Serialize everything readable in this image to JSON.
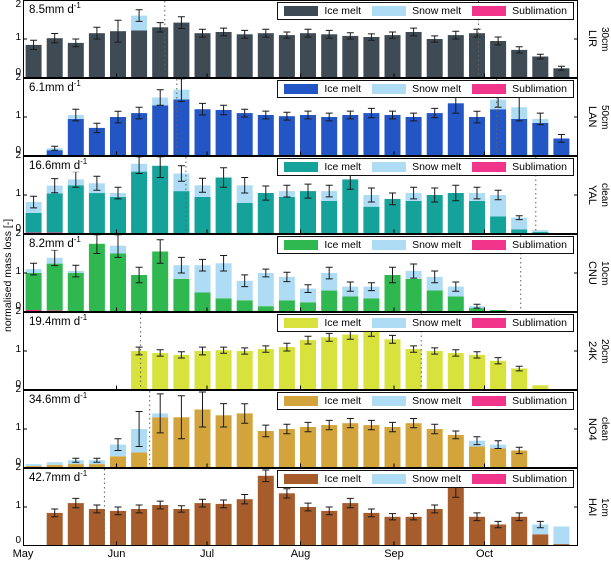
{
  "chart_data": {
    "type": "bar",
    "stacked": true,
    "stack_order": [
      "sublimation",
      "ice_melt",
      "snow_melt"
    ],
    "ylabel": "normalised mass loss [-]",
    "ylim": [
      0,
      2
    ],
    "yticks": [
      2,
      1,
      0
    ],
    "legend": {
      "labels": [
        "Ice melt",
        "Snow melt",
        "Sublimation"
      ],
      "position": "top-right-inside"
    },
    "colors": {
      "snow_melt": "#aedcf5",
      "sublimation": "#f0358b",
      "error": "#1a1a1a",
      "dotted_line": "#606060",
      "frame": "#000000"
    },
    "x_axis": {
      "unit": "day_of_season",
      "total_days": 184,
      "first_bar_center_day": 3.5,
      "bar_spacing_days": 7,
      "months": [
        {
          "label": "May",
          "day": 0
        },
        {
          "label": "Jun",
          "day": 31
        },
        {
          "label": "Jul",
          "day": 61
        },
        {
          "label": "Aug",
          "day": 92
        },
        {
          "label": "Sep",
          "day": 123
        },
        {
          "label": "Oct",
          "day": 153
        }
      ]
    },
    "panels": [
      {
        "site": "LIR",
        "depth": "30cm",
        "rate_label": "8.5mm d",
        "rate_sup": "-1",
        "ice_color": "#3f4b54",
        "ice": [
          0.85,
          1.02,
          0.9,
          1.15,
          1.2,
          1.22,
          1.3,
          1.42,
          1.15,
          1.18,
          1.12,
          1.15,
          1.1,
          1.15,
          1.12,
          1.08,
          1.05,
          1.1,
          1.18,
          1.0,
          1.1,
          1.15,
          0.95,
          0.72,
          0.55,
          0.25
        ],
        "snow": [
          0,
          0,
          0,
          0,
          0,
          0.38,
          0,
          0,
          0,
          0,
          0,
          0,
          0,
          0,
          0,
          0,
          0,
          0,
          0,
          0,
          0,
          0,
          0,
          0,
          0,
          0
        ],
        "sub": [
          0,
          0,
          0,
          0,
          0,
          0,
          0,
          0,
          0,
          0,
          0,
          0,
          0,
          0,
          0,
          0,
          0,
          0,
          0,
          0,
          0,
          0,
          0,
          0,
          0,
          0
        ],
        "err": [
          0.12,
          0.12,
          0.1,
          0.15,
          0.28,
          0.15,
          0.12,
          0.15,
          0.1,
          0.1,
          0.1,
          0.1,
          0.08,
          0.1,
          0.1,
          0.08,
          0.08,
          0.08,
          0.1,
          0.08,
          0.1,
          0.1,
          0.1,
          0.08,
          0.06,
          0.05
        ],
        "dotted_days": [
          47,
          151
        ]
      },
      {
        "site": "LAN",
        "depth": "50cm",
        "rate_label": "6.1mm d",
        "rate_sup": "-1",
        "ice_color": "#2356c4",
        "ice": [
          0,
          0.15,
          0.95,
          0.72,
          1.0,
          1.1,
          1.3,
          1.45,
          1.2,
          1.18,
          1.1,
          1.05,
          1.02,
          1.05,
          1.0,
          1.05,
          1.1,
          1.05,
          1.0,
          1.1,
          1.35,
          1.0,
          1.2,
          0.95,
          0.85,
          0.45
        ],
        "snow": [
          0,
          0.05,
          0.1,
          0,
          0,
          0,
          0.2,
          0.25,
          0,
          0,
          0,
          0,
          0,
          0,
          0,
          0,
          0,
          0,
          0,
          0,
          0,
          0,
          0.25,
          0.3,
          0.1,
          0
        ],
        "sub": [
          0,
          0,
          0,
          0,
          0,
          0,
          0,
          0,
          0,
          0,
          0,
          0,
          0,
          0,
          0,
          0,
          0,
          0,
          0,
          0,
          0,
          0,
          0,
          0,
          0,
          0
        ],
        "err": [
          0,
          0.05,
          0.15,
          0.12,
          0.15,
          0.15,
          0.2,
          0.3,
          0.15,
          0.12,
          0.1,
          0.1,
          0.1,
          0.1,
          0.1,
          0.1,
          0.12,
          0.1,
          0.1,
          0.12,
          0.25,
          0.15,
          0.2,
          0.35,
          0.15,
          0.1
        ],
        "dotted_days": [
          51,
          157
        ]
      },
      {
        "site": "YAL",
        "depth": "clean",
        "rate_label": "16.6mm d",
        "rate_sup": "-1",
        "ice_color": "#14a29a",
        "ice": [
          0.5,
          1.0,
          1.25,
          1.05,
          0.95,
          1.6,
          1.75,
          1.1,
          0.95,
          1.45,
          0.8,
          1.05,
          0.95,
          1.1,
          0.85,
          1.4,
          0.7,
          0.9,
          0.85,
          1.0,
          1.05,
          0.85,
          0.45,
          0.12,
          0.05,
          0
        ],
        "snow": [
          0.28,
          0.2,
          0.15,
          0.25,
          0.1,
          0.2,
          0,
          0.45,
          0.3,
          0,
          0.45,
          0,
          0.15,
          0,
          0.25,
          0,
          0.3,
          0,
          0.2,
          0,
          0,
          0.2,
          0.55,
          0.3,
          0.05,
          0
        ],
        "sub": [
          0.04,
          0.04,
          0,
          0,
          0,
          0,
          0,
          0,
          0,
          0,
          0,
          0,
          0,
          0,
          0,
          0,
          0,
          0,
          0,
          0,
          0,
          0,
          0,
          0,
          0,
          0
        ],
        "err": [
          0.15,
          0.18,
          0.2,
          0.18,
          0.15,
          0.25,
          0.3,
          0.2,
          0.18,
          0.25,
          0.2,
          0.18,
          0.15,
          0.18,
          0.15,
          0.25,
          0.18,
          0.15,
          0.15,
          0.18,
          0.2,
          0.15,
          0.12,
          0.05,
          0,
          0
        ],
        "dotted_days": [
          54,
          170
        ]
      },
      {
        "site": "CNU",
        "depth": "10cm",
        "rate_label": "8.2mm d",
        "rate_sup": "-1",
        "ice_color": "#2eb84f",
        "ice": [
          0.95,
          1.2,
          1.0,
          1.75,
          1.5,
          0.95,
          1.55,
          0.85,
          0.5,
          0.35,
          0.3,
          0.15,
          0.3,
          0.25,
          0.55,
          0.4,
          0.35,
          0.95,
          0.85,
          0.55,
          0.4,
          0.1,
          0.05,
          0,
          0,
          0
        ],
        "snow": [
          0.1,
          0.15,
          0.05,
          0,
          0.2,
          0,
          0,
          0.35,
          0.7,
          0.9,
          0.5,
          0.85,
          0.6,
          0.35,
          0.45,
          0.25,
          0.3,
          0,
          0.2,
          0.35,
          0.25,
          0.05,
          0,
          0,
          0,
          0
        ],
        "sub": [
          0.05,
          0.04,
          0,
          0,
          0,
          0,
          0,
          0,
          0,
          0,
          0,
          0,
          0,
          0,
          0,
          0,
          0,
          0,
          0,
          0,
          0,
          0,
          0,
          0,
          0,
          0
        ],
        "err": [
          0.15,
          0.2,
          0.15,
          0.25,
          0.3,
          0.2,
          0.3,
          0.2,
          0.15,
          0.2,
          0.15,
          0.1,
          0.12,
          0.1,
          0.15,
          0.12,
          0.1,
          0.2,
          0.18,
          0.15,
          0.12,
          0.05,
          0,
          0,
          0,
          0
        ],
        "dotted_days": [
          165
        ]
      },
      {
        "site": "24K",
        "depth": "20cm",
        "rate_label": "19.4mm d",
        "rate_sup": "-1",
        "ice_color": "#d7e23c",
        "ice": [
          0,
          0,
          0,
          0,
          0,
          1.0,
          0.95,
          0.9,
          1.0,
          1.02,
          1.0,
          1.05,
          1.1,
          1.28,
          1.35,
          1.42,
          1.5,
          1.3,
          1.05,
          1.0,
          0.95,
          0.9,
          0.75,
          0.55,
          0.12,
          0
        ],
        "snow": [
          0,
          0,
          0,
          0,
          0,
          0,
          0,
          0,
          0,
          0,
          0,
          0,
          0,
          0,
          0,
          0,
          0,
          0,
          0,
          0,
          0,
          0,
          0,
          0,
          0,
          0
        ],
        "sub": [
          0,
          0,
          0,
          0,
          0,
          0,
          0,
          0,
          0,
          0,
          0,
          0,
          0,
          0,
          0,
          0,
          0,
          0,
          0,
          0,
          0,
          0,
          0,
          0,
          0,
          0
        ],
        "err": [
          0,
          0,
          0,
          0,
          0,
          0.1,
          0.08,
          0.08,
          0.1,
          0.08,
          0.08,
          0.08,
          0.1,
          0.1,
          0.1,
          0.12,
          0.12,
          0.1,
          0.08,
          0.08,
          0.08,
          0.08,
          0.08,
          0.06,
          0,
          0
        ],
        "dotted_days": [
          39,
          132
        ]
      },
      {
        "site": "NO4",
        "depth": "clean",
        "rate_label": "34.6mm d",
        "rate_sup": "-1",
        "ice_color": "#d3a43c",
        "ice": [
          0.05,
          0.08,
          0.1,
          0.1,
          0.3,
          0.4,
          1.3,
          1.3,
          1.5,
          1.35,
          1.4,
          0.95,
          1.0,
          1.05,
          1.1,
          1.15,
          1.1,
          1.05,
          1.15,
          1.0,
          0.85,
          0.55,
          0.5,
          0.45,
          0,
          0
        ],
        "snow": [
          0.05,
          0.07,
          0.1,
          0.1,
          0.3,
          0.6,
          0.1,
          0,
          0,
          0,
          0,
          0,
          0,
          0,
          0,
          0,
          0,
          0,
          0,
          0,
          0,
          0.15,
          0.1,
          0,
          0,
          0
        ],
        "sub": [
          0,
          0,
          0,
          0,
          0,
          0,
          0,
          0,
          0,
          0,
          0,
          0,
          0,
          0,
          0,
          0,
          0,
          0,
          0,
          0,
          0,
          0,
          0,
          0,
          0,
          0
        ],
        "err": [
          0,
          0,
          0.05,
          0.05,
          0.15,
          0.45,
          0.5,
          0.55,
          0.45,
          0.3,
          0.25,
          0.15,
          0.12,
          0.12,
          0.12,
          0.12,
          0.12,
          0.12,
          0.12,
          0.12,
          0.1,
          0.1,
          0.1,
          0.08,
          0,
          0
        ],
        "dotted_days": [
          42
        ]
      },
      {
        "site": "HAI",
        "depth": "1cm",
        "rate_label": "42.7mm d",
        "rate_sup": "-1",
        "ice_color": "#a65d2b",
        "ice": [
          0,
          0.85,
          1.1,
          0.95,
          0.9,
          0.95,
          1.05,
          0.95,
          1.1,
          1.08,
          1.2,
          1.8,
          1.35,
          1.0,
          0.9,
          1.1,
          0.85,
          0.75,
          0.75,
          0.95,
          1.55,
          0.75,
          0.55,
          0.75,
          0.3,
          0.05
        ],
        "snow": [
          0,
          0,
          0,
          0,
          0,
          0,
          0,
          0,
          0,
          0,
          0,
          0,
          0,
          0,
          0,
          0,
          0,
          0,
          0,
          0,
          0,
          0,
          0,
          0,
          0.25,
          0.45
        ],
        "sub": [
          0,
          0,
          0,
          0,
          0,
          0,
          0,
          0,
          0,
          0,
          0,
          0,
          0,
          0,
          0,
          0,
          0,
          0,
          0,
          0,
          0,
          0,
          0,
          0,
          0,
          0
        ],
        "err": [
          0,
          0.1,
          0.12,
          0.1,
          0.1,
          0.1,
          0.1,
          0.08,
          0.1,
          0.1,
          0.12,
          0.15,
          0.12,
          0.1,
          0.1,
          0.12,
          0.1,
          0.08,
          0.08,
          0.1,
          0.3,
          0.1,
          0.08,
          0.1,
          0.08,
          0
        ],
        "dotted_days": [
          27
        ]
      }
    ]
  }
}
